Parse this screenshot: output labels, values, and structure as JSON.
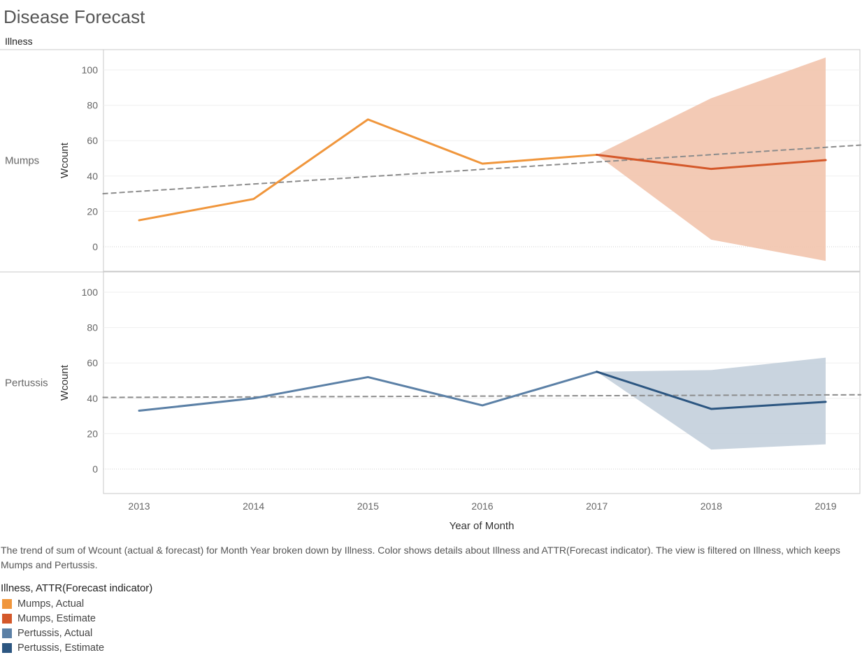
{
  "title": "Disease Forecast",
  "header_label": "Illness",
  "caption": "The trend of sum of Wcount (actual & forecast)  for Month Year broken down by Illness.  Color shows details about Illness and ATTR(Forecast indicator). The view is filtered on Illness, which keeps Mumps and Pertussis.",
  "legend": {
    "title": "Illness, ATTR(Forecast indicator)",
    "items": [
      {
        "label": "Mumps, Actual",
        "color": "#f0963c"
      },
      {
        "label": "Mumps, Estimate",
        "color": "#d4582a"
      },
      {
        "label": "Pertussis, Actual",
        "color": "#5b80a6"
      },
      {
        "label": "Pertussis, Estimate",
        "color": "#2c5681"
      }
    ]
  },
  "chart_data": {
    "type": "line",
    "x": [
      2013,
      2014,
      2015,
      2016,
      2017,
      2018,
      2019
    ],
    "xlabel": "Year of Month",
    "ylabel": "Wcount",
    "ylim": [
      -10,
      110
    ],
    "yticks": [
      0,
      20,
      40,
      60,
      80,
      100
    ],
    "grid": true,
    "panels": [
      {
        "name": "Mumps",
        "actual": {
          "name": "Mumps, Actual",
          "color": "#f0963c",
          "x": [
            2013,
            2014,
            2015,
            2016,
            2017
          ],
          "values": [
            15,
            27,
            72,
            47,
            52
          ]
        },
        "estimate": {
          "name": "Mumps, Estimate",
          "color": "#d4582a",
          "x": [
            2017,
            2018,
            2019
          ],
          "values": [
            52,
            44,
            49
          ]
        },
        "band": {
          "color": "#f2c4ad",
          "x": [
            2017,
            2018,
            2019
          ],
          "upper": [
            52,
            84,
            107
          ],
          "lower": [
            52,
            4,
            -8
          ]
        },
        "trend": {
          "start": [
            2012.68,
            30
          ],
          "end": [
            2019.31,
            57.5
          ]
        }
      },
      {
        "name": "Pertussis",
        "actual": {
          "name": "Pertussis, Actual",
          "color": "#5b80a6",
          "x": [
            2013,
            2014,
            2015,
            2016,
            2017
          ],
          "values": [
            33,
            40,
            52,
            36,
            55
          ]
        },
        "estimate": {
          "name": "Pertussis, Estimate",
          "color": "#2c5681",
          "x": [
            2017,
            2018,
            2019
          ],
          "values": [
            55,
            34,
            38
          ]
        },
        "band": {
          "color": "#c3cfdc",
          "x": [
            2017,
            2018,
            2019
          ],
          "upper": [
            55,
            56,
            63
          ],
          "lower": [
            55,
            11,
            14
          ]
        },
        "trend": {
          "start": [
            2012.68,
            40.5
          ],
          "end": [
            2019.31,
            42
          ]
        }
      }
    ]
  }
}
